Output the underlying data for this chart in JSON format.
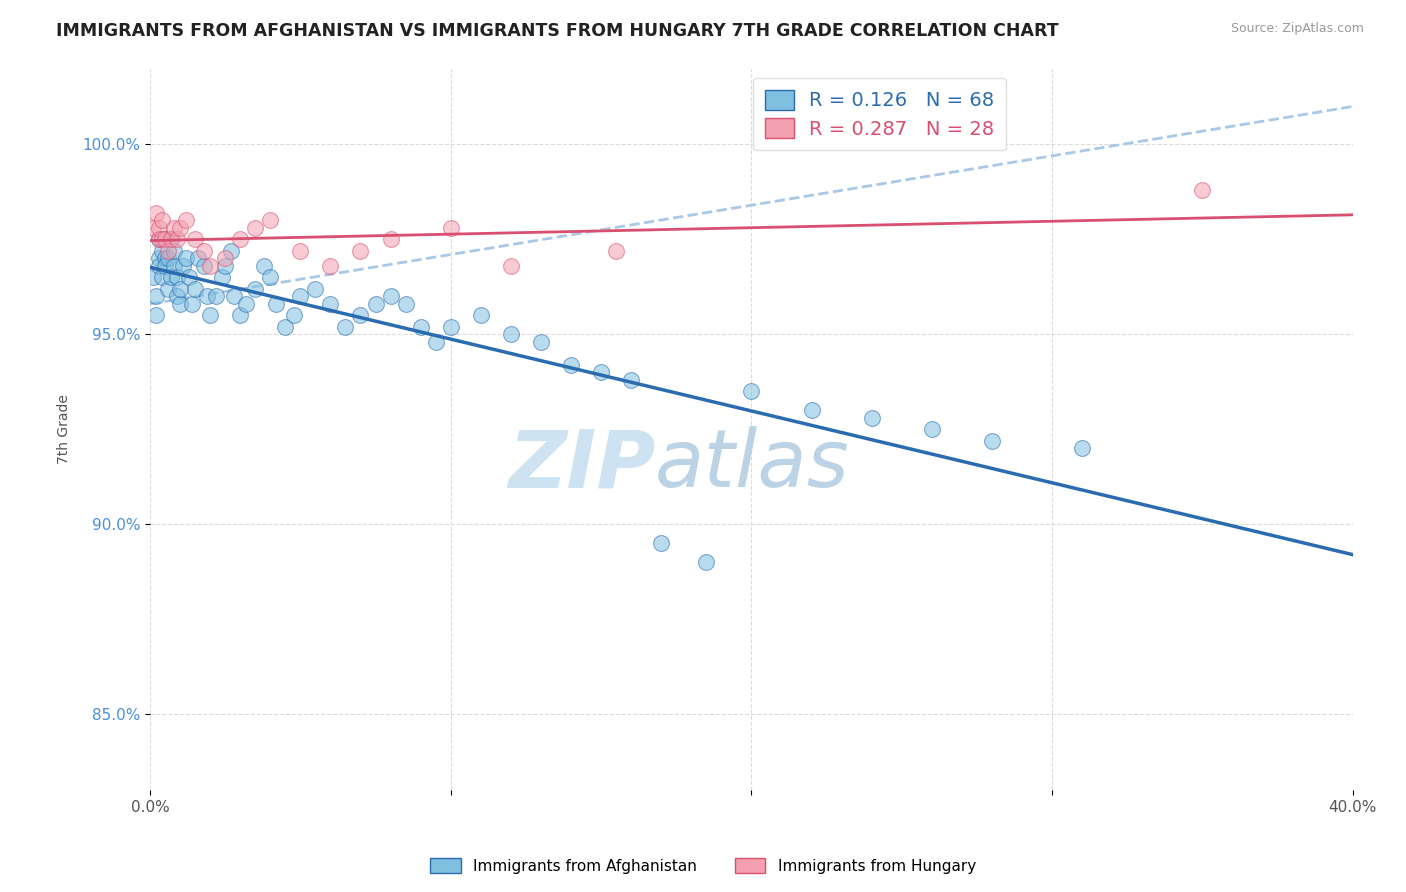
{
  "title": "IMMIGRANTS FROM AFGHANISTAN VS IMMIGRANTS FROM HUNGARY 7TH GRADE CORRELATION CHART",
  "source": "Source: ZipAtlas.com",
  "ylabel": "7th Grade",
  "xlim": [
    0.0,
    0.4
  ],
  "ylim": [
    0.83,
    1.02
  ],
  "yticks": [
    0.85,
    0.9,
    0.95,
    1.0
  ],
  "ytick_labels": [
    "85.0%",
    "90.0%",
    "95.0%",
    "100.0%"
  ],
  "xticks": [
    0.0,
    0.1,
    0.2,
    0.3,
    0.4
  ],
  "xtick_labels": [
    "0.0%",
    "",
    "",
    "",
    "40.0%"
  ],
  "legend_blue_R": "R = 0.126",
  "legend_blue_N": "N = 68",
  "legend_pink_R": "R = 0.287",
  "legend_pink_N": "N = 28",
  "blue_color": "#7fbfdf",
  "pink_color": "#f4a0b0",
  "blue_line_color": "#2b6cb0",
  "pink_line_color": "#d94f70",
  "dashed_line_color": "#a8c8e8",
  "watermark_zip": "ZIP",
  "watermark_atlas": "atlas",
  "watermark_color_zip": "#c5dff0",
  "watermark_color_atlas": "#b0cce0",
  "background_color": "#ffffff",
  "af_x": [
    0.001,
    0.002,
    0.002,
    0.003,
    0.003,
    0.003,
    0.004,
    0.004,
    0.005,
    0.005,
    0.005,
    0.006,
    0.006,
    0.007,
    0.007,
    0.008,
    0.008,
    0.009,
    0.009,
    0.01,
    0.01,
    0.011,
    0.012,
    0.013,
    0.014,
    0.015,
    0.016,
    0.018,
    0.019,
    0.02,
    0.022,
    0.024,
    0.025,
    0.027,
    0.028,
    0.03,
    0.032,
    0.035,
    0.038,
    0.04,
    0.042,
    0.045,
    0.048,
    0.05,
    0.055,
    0.06,
    0.065,
    0.07,
    0.075,
    0.08,
    0.085,
    0.09,
    0.095,
    0.1,
    0.11,
    0.12,
    0.13,
    0.14,
    0.15,
    0.16,
    0.17,
    0.185,
    0.2,
    0.22,
    0.24,
    0.26,
    0.28,
    0.31
  ],
  "af_y": [
    0.965,
    0.96,
    0.955,
    0.975,
    0.97,
    0.968,
    0.972,
    0.965,
    0.97,
    0.975,
    0.968,
    0.962,
    0.97,
    0.975,
    0.965,
    0.968,
    0.972,
    0.96,
    0.965,
    0.958,
    0.962,
    0.968,
    0.97,
    0.965,
    0.958,
    0.962,
    0.97,
    0.968,
    0.96,
    0.955,
    0.96,
    0.965,
    0.968,
    0.972,
    0.96,
    0.955,
    0.958,
    0.962,
    0.968,
    0.965,
    0.958,
    0.952,
    0.955,
    0.96,
    0.962,
    0.958,
    0.952,
    0.955,
    0.958,
    0.96,
    0.958,
    0.952,
    0.948,
    0.952,
    0.955,
    0.95,
    0.948,
    0.942,
    0.94,
    0.938,
    0.895,
    0.89,
    0.935,
    0.93,
    0.928,
    0.925,
    0.922,
    0.92
  ],
  "hu_x": [
    0.001,
    0.002,
    0.003,
    0.003,
    0.004,
    0.004,
    0.005,
    0.006,
    0.007,
    0.008,
    0.009,
    0.01,
    0.012,
    0.015,
    0.018,
    0.02,
    0.025,
    0.03,
    0.035,
    0.04,
    0.05,
    0.06,
    0.07,
    0.08,
    0.1,
    0.12,
    0.155,
    0.35
  ],
  "hu_y": [
    0.978,
    0.982,
    0.975,
    0.978,
    0.975,
    0.98,
    0.975,
    0.972,
    0.975,
    0.978,
    0.975,
    0.978,
    0.98,
    0.975,
    0.972,
    0.968,
    0.97,
    0.975,
    0.978,
    0.98,
    0.972,
    0.968,
    0.972,
    0.975,
    0.978,
    0.968,
    0.972,
    0.988
  ]
}
